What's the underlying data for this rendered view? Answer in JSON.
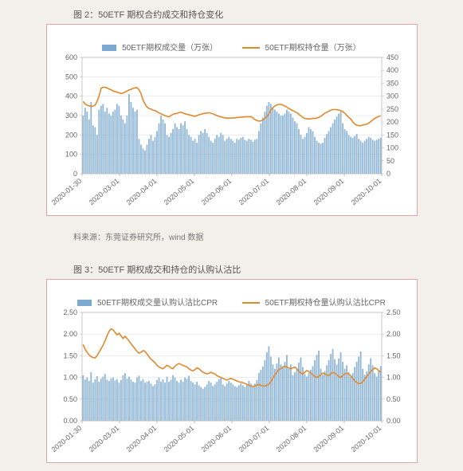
{
  "fig2": {
    "title": "图 2：50ETF 期权合约成交和持仓变化",
    "legend_bar": "50ETF期权成交量（万张）",
    "legend_line": "50ETF期权持仓量（万张）",
    "type": "bar+line-dual-axis",
    "bar_color": "#7ba9cf",
    "line_color": "#e0892f",
    "grid_color": "#e5e5e5",
    "axis_color": "#bbbbbb",
    "background_color": "#ffffff",
    "text_color": "#666666",
    "label_fontsize": 9,
    "y_left": {
      "min": 0,
      "max": 600,
      "step": 100
    },
    "y_right": {
      "min": 0,
      "max": 450,
      "step": 50
    },
    "x_labels": [
      "2020-01-30",
      "2020-03-01",
      "2020-04-01",
      "2020-05-01",
      "2020-06-01",
      "2020-07-01",
      "2020-08-01",
      "2020-09-01",
      "2020-10-01"
    ],
    "bars": [
      300,
      340,
      320,
      280,
      370,
      250,
      240,
      200,
      330,
      350,
      360,
      320,
      340,
      310,
      300,
      320,
      330,
      360,
      350,
      300,
      280,
      260,
      300,
      410,
      370,
      340,
      320,
      330,
      180,
      150,
      130,
      120,
      150,
      180,
      200,
      170,
      190,
      220,
      260,
      300,
      280,
      260,
      200,
      190,
      210,
      230,
      260,
      240,
      230,
      260,
      250,
      270,
      230,
      200,
      190,
      170,
      180,
      160,
      200,
      220,
      210,
      230,
      210,
      190,
      170,
      160,
      180,
      200,
      190,
      210,
      200,
      170,
      180,
      190,
      180,
      170,
      160,
      180,
      175,
      185,
      190,
      175,
      170,
      180,
      175,
      165,
      175,
      180,
      220,
      260,
      290,
      320,
      350,
      370,
      360,
      340,
      330,
      320,
      310,
      300,
      300,
      310,
      330,
      320,
      310,
      290,
      270,
      260,
      230,
      200,
      180,
      190,
      210,
      240,
      230,
      220,
      190,
      170,
      160,
      155,
      160,
      185,
      205,
      220,
      240,
      260,
      280,
      295,
      310,
      320,
      260,
      230,
      220,
      200,
      190,
      185,
      195,
      205,
      180,
      170,
      160,
      170,
      180,
      190,
      185,
      175,
      170,
      175,
      180,
      185
    ],
    "line": [
      280,
      270,
      265,
      263,
      260,
      262,
      265,
      280,
      300,
      330,
      335,
      334,
      332,
      328,
      325,
      320,
      318,
      315,
      313,
      310,
      312,
      316,
      320,
      324,
      326,
      330,
      332,
      333,
      325,
      310,
      285,
      270,
      258,
      252,
      250,
      246,
      244,
      240,
      235,
      232,
      228,
      225,
      222,
      220,
      225,
      230,
      232,
      234,
      236,
      238,
      235,
      232,
      230,
      228,
      226,
      224,
      222,
      225,
      228,
      230,
      232,
      234,
      235,
      236,
      234,
      232,
      228,
      225,
      222,
      220,
      218,
      216,
      215,
      215,
      215,
      216,
      216,
      218,
      218,
      219,
      219,
      220,
      220,
      220,
      221,
      216,
      210,
      206,
      204,
      204,
      208,
      214,
      222,
      232,
      246,
      256,
      262,
      266,
      268,
      268,
      266,
      262,
      258,
      252,
      248,
      244,
      240,
      236,
      230,
      224,
      218,
      214,
      212,
      212,
      212,
      214,
      214,
      215,
      218,
      222,
      228,
      234,
      238,
      242,
      246,
      248,
      248,
      248,
      246,
      244,
      240,
      234,
      226,
      218,
      212,
      200,
      192,
      188,
      186,
      186,
      188,
      190,
      192,
      196,
      202,
      208,
      214,
      218,
      222,
      224
    ]
  },
  "source": "料来源：东莞证券研究所，wind 数据",
  "fig3": {
    "title": "图 3：50ETF 期权成交和持仓的认购认沽比",
    "legend_bar": "50ETF期权成交量认购认沽比CPR",
    "legend_line": "50ETF期权持仓量认购认沽比CPR",
    "type": "bar+line-dual-axis",
    "bar_color": "#7ba9cf",
    "line_color": "#e0892f",
    "grid_color": "#e5e5e5",
    "axis_color": "#bbbbbb",
    "background_color": "#ffffff",
    "text_color": "#666666",
    "label_fontsize": 9,
    "y_left": {
      "min": 0,
      "max": 2.5,
      "step": 0.5
    },
    "y_right": {
      "min": 0,
      "max": 2.5,
      "step": 0.5
    },
    "x_labels": [
      "2020-01-30",
      "2020-03-01",
      "2020-04-01",
      "2020-05-01",
      "2020-06-01",
      "2020-07-01",
      "2020-08-01",
      "2020-09-01",
      "2020-10-01"
    ],
    "bars": [
      1.05,
      0.95,
      1.0,
      0.92,
      1.12,
      0.88,
      0.96,
      1.03,
      0.9,
      0.97,
      1.02,
      1.08,
      0.95,
      0.92,
      0.98,
      1.0,
      0.93,
      0.96,
      0.88,
      0.94,
      1.05,
      1.1,
      0.97,
      1.02,
      0.95,
      0.9,
      0.88,
      1.0,
      1.04,
      0.92,
      0.96,
      0.88,
      0.9,
      0.92,
      0.86,
      0.8,
      0.84,
      0.94,
      1.0,
      0.9,
      0.96,
      0.88,
      1.02,
      0.9,
      0.95,
      1.05,
      1.0,
      0.92,
      0.88,
      0.95,
      0.9,
      1.0,
      0.97,
      1.04,
      0.92,
      0.88,
      0.84,
      0.9,
      0.82,
      0.78,
      0.74,
      0.78,
      0.84,
      0.92,
      0.88,
      0.8,
      0.84,
      0.9,
      0.96,
      1.0,
      0.84,
      0.8,
      0.86,
      0.92,
      0.88,
      0.84,
      0.8,
      0.78,
      0.82,
      0.86,
      0.82,
      0.78,
      0.84,
      0.92,
      0.86,
      0.8,
      0.86,
      0.94,
      1.1,
      1.18,
      1.25,
      1.4,
      1.58,
      1.72,
      1.48,
      1.3,
      1.2,
      1.32,
      1.46,
      1.3,
      1.24,
      1.36,
      1.52,
      1.2,
      1.3,
      1.05,
      1.12,
      1.2,
      1.34,
      1.46,
      1.24,
      1.08,
      1.02,
      1.1,
      1.18,
      1.26,
      1.4,
      1.52,
      1.62,
      1.2,
      1.06,
      1.14,
      1.28,
      1.4,
      1.54,
      1.66,
      1.42,
      1.3,
      1.44,
      1.58,
      1.36,
      1.2,
      1.28,
      1.12,
      1.02,
      1.1,
      1.24,
      1.36,
      1.48,
      1.6,
      1.2,
      1.06,
      1.14,
      1.3,
      1.44,
      1.28,
      1.1,
      1.02,
      1.14,
      1.26
    ],
    "line": [
      1.76,
      1.65,
      1.58,
      1.52,
      1.48,
      1.46,
      1.45,
      1.5,
      1.58,
      1.66,
      1.74,
      1.85,
      1.96,
      2.06,
      2.12,
      2.1,
      2.04,
      1.98,
      2.02,
      1.96,
      1.9,
      1.95,
      1.9,
      1.84,
      1.78,
      1.72,
      1.66,
      1.6,
      1.56,
      1.58,
      1.62,
      1.6,
      1.54,
      1.48,
      1.42,
      1.38,
      1.34,
      1.28,
      1.24,
      1.22,
      1.2,
      1.24,
      1.28,
      1.26,
      1.22,
      1.2,
      1.26,
      1.3,
      1.32,
      1.3,
      1.28,
      1.26,
      1.24,
      1.2,
      1.17,
      1.15,
      1.18,
      1.22,
      1.2,
      1.16,
      1.12,
      1.1,
      1.08,
      1.1,
      1.12,
      1.1,
      1.08,
      1.04,
      1.02,
      1.0,
      0.98,
      0.96,
      0.94,
      0.96,
      0.98,
      0.96,
      0.94,
      0.92,
      0.9,
      0.89,
      0.88,
      0.86,
      0.84,
      0.82,
      0.8,
      0.8,
      0.8,
      0.82,
      0.84,
      0.82,
      0.8,
      0.8,
      0.82,
      0.84,
      0.9,
      0.98,
      1.06,
      1.12,
      1.18,
      1.2,
      1.24,
      1.26,
      1.24,
      1.22,
      1.2,
      1.22,
      1.24,
      1.2,
      1.14,
      1.1,
      1.08,
      1.12,
      1.16,
      1.14,
      1.1,
      1.06,
      1.02,
      1.0,
      1.02,
      1.06,
      1.1,
      1.08,
      1.06,
      1.04,
      1.08,
      1.12,
      1.1,
      1.06,
      1.02,
      1.0,
      1.04,
      1.08,
      1.1,
      1.08,
      1.04,
      0.98,
      0.92,
      0.88,
      0.86,
      0.86,
      0.9,
      0.96,
      1.02,
      1.08,
      1.14,
      1.18,
      1.22,
      1.2,
      1.16,
      1.12
    ]
  }
}
